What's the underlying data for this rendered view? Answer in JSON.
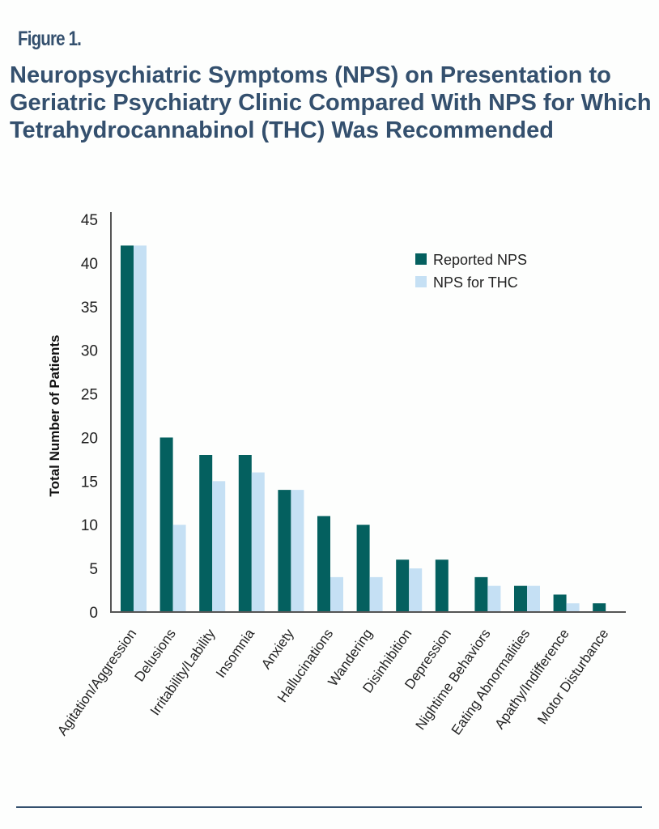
{
  "figure_label": "Figure 1.",
  "chart_data": {
    "type": "bar",
    "title": "Neuropsychiatric Symptoms (NPS) on Presentation to Geriatric Psychiatry Clinic Compared With NPS for Which Tetrahydrocannabinol (THC) Was Recommended",
    "xlabel": "",
    "ylabel": "Total Number of Patients",
    "ylim": [
      0,
      45
    ],
    "yticks": [
      0,
      5,
      10,
      15,
      20,
      25,
      30,
      35,
      40,
      45
    ],
    "grid": false,
    "legend_position": "top-right",
    "categories": [
      "Agitation/Aggression",
      "Delusions",
      "Irritability/Lability",
      "Insomnia",
      "Anxiety",
      "Hallucinations",
      "Wandering",
      "Disinhibition",
      "Depression",
      "Nightime Behaviors",
      "Eating Abnormalities",
      "Apathy/Indifference",
      "Motor Disturbance"
    ],
    "series": [
      {
        "name": "Reported NPS",
        "color": "#04605f",
        "values": [
          42,
          20,
          18,
          18,
          14,
          11,
          10,
          6,
          6,
          4,
          3,
          2,
          1
        ]
      },
      {
        "name": "NPS for THC",
        "color": "#c5e0f4",
        "values": [
          42,
          10,
          15,
          16,
          14,
          4,
          4,
          5,
          0,
          3,
          3,
          1,
          0
        ]
      }
    ]
  }
}
